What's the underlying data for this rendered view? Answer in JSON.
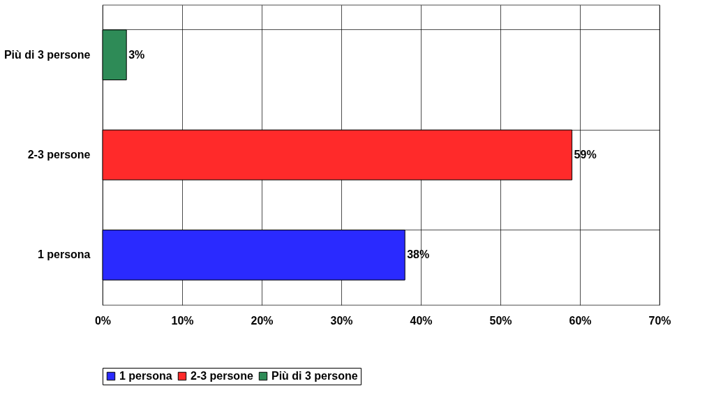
{
  "chart_data": {
    "type": "bar",
    "orientation": "horizontal",
    "categories": [
      "Più di 3 persone",
      "2-3 persone",
      "1 persona"
    ],
    "series": [
      {
        "name": "1 persona",
        "color": "#2a2aff",
        "values": [
          null,
          null,
          38
        ],
        "value_labels": [
          null,
          null,
          "38%"
        ]
      },
      {
        "name": "2-3 persone",
        "color": "#ff2a2a",
        "values": [
          null,
          59,
          null
        ],
        "value_labels": [
          null,
          "59%",
          null
        ]
      },
      {
        "name": "Più di 3 persone",
        "color": "#2e8b57",
        "values": [
          3,
          null,
          null
        ],
        "value_labels": [
          "3%",
          null,
          null
        ]
      }
    ],
    "xlim": [
      0,
      70
    ],
    "xticks": [
      {
        "value": 0,
        "label": "0%"
      },
      {
        "value": 10,
        "label": "10%"
      },
      {
        "value": 20,
        "label": "20%"
      },
      {
        "value": 30,
        "label": "30%"
      },
      {
        "value": 40,
        "label": "40%"
      },
      {
        "value": 50,
        "label": "50%"
      },
      {
        "value": 60,
        "label": "60%"
      },
      {
        "value": 70,
        "label": "70%"
      }
    ],
    "grid": true,
    "legend": "bottom"
  }
}
